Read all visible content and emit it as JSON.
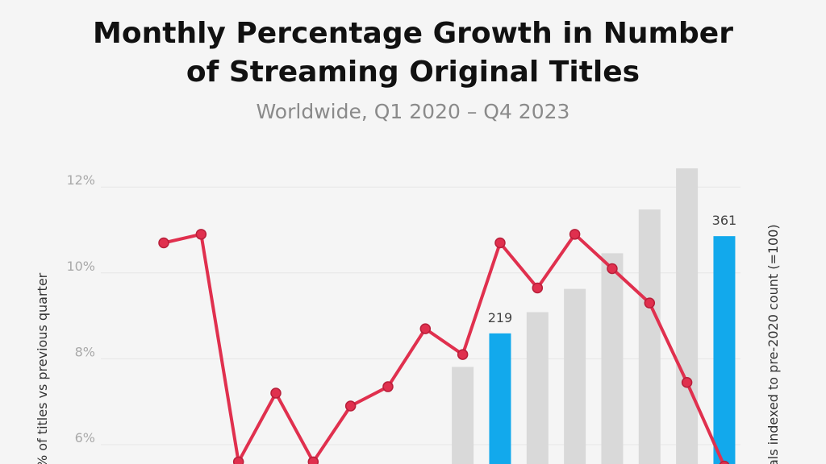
{
  "title_lines": [
    "Monthly Percentage Growth in Number",
    "of Streaming Original Titles"
  ],
  "subtitle": "Worldwide, Q1 2020 – Q4 2023",
  "chart_data": {
    "type": "bar+line",
    "title": "Monthly Percentage Growth in Number of Streaming Original Titles",
    "subtitle": "Worldwide, Q1 2020 – Q4 2023",
    "ylabel_left": "% of titles vs previous quarter",
    "ylabel_right": "als indexed to pre-2020 count (=100)",
    "y_left_ticks": [
      "6%",
      "8%",
      "10%",
      "12%"
    ],
    "y_left_tick_values": [
      6,
      8,
      10,
      12
    ],
    "y_left_range_visible": [
      5.6,
      12.4
    ],
    "grid": true,
    "colors": {
      "line": "#e0304e",
      "bar_gray": "#d9d9d9",
      "bar_highlight": "#12a9ec",
      "grid": "#e6e6e6"
    },
    "line_series": {
      "name": "",
      "values": [
        10.7,
        10.9,
        5.6,
        7.2,
        5.6,
        6.9,
        7.35,
        8.7,
        8.1,
        10.7,
        9.65,
        10.9,
        10.1,
        9.3,
        7.45,
        5.5
      ]
    },
    "bar_series": {
      "name": "",
      "values": [
        0,
        0,
        0,
        0,
        0,
        0,
        0,
        0,
        170,
        219,
        250,
        284,
        336,
        400,
        460,
        361
      ],
      "highlighted_indices": [
        9,
        15
      ],
      "labels": {
        "9": "219",
        "15": "361"
      }
    }
  }
}
